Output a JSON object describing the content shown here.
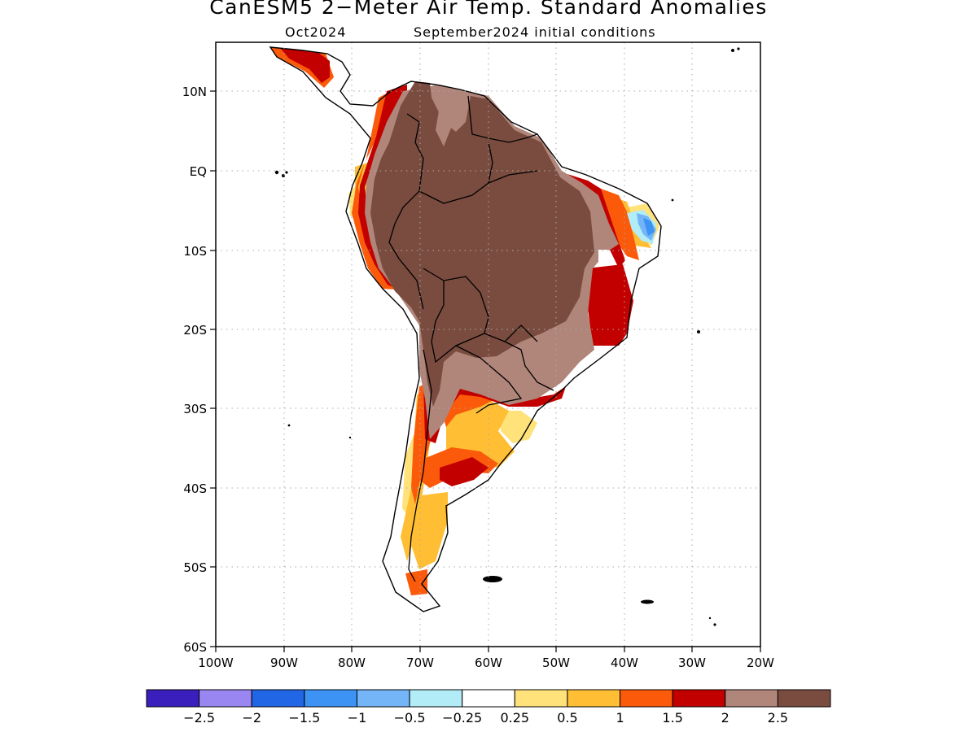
{
  "title": "CanESM5 2−Meter Air Temp. Standard Anomalies",
  "valid_month": "Oct2024",
  "initial_conditions": "September2024 initial conditions",
  "lat_labels": [
    "10N",
    "EQ",
    "10S",
    "20S",
    "30S",
    "40S",
    "50S",
    "60S"
  ],
  "lon_labels": [
    "100W",
    "90W",
    "80W",
    "70W",
    "60W",
    "50W",
    "40W",
    "30W",
    "20W"
  ],
  "colorbar": {
    "colors": [
      "#3b1fbd",
      "#9a86f0",
      "#2166e5",
      "#3c93f3",
      "#73b5f7",
      "#b1ecf7",
      "#ffffff",
      "#ffe27a",
      "#ffbe33",
      "#fa5a0a",
      "#c30000",
      "#b0857a",
      "#7a4c3f"
    ],
    "labels": [
      "−2.5",
      "−2",
      "−1.5",
      "−1",
      "−0.5",
      "−0.25",
      "0.25",
      "0.5",
      "1",
      "1.5",
      "2",
      "2.5"
    ]
  }
}
